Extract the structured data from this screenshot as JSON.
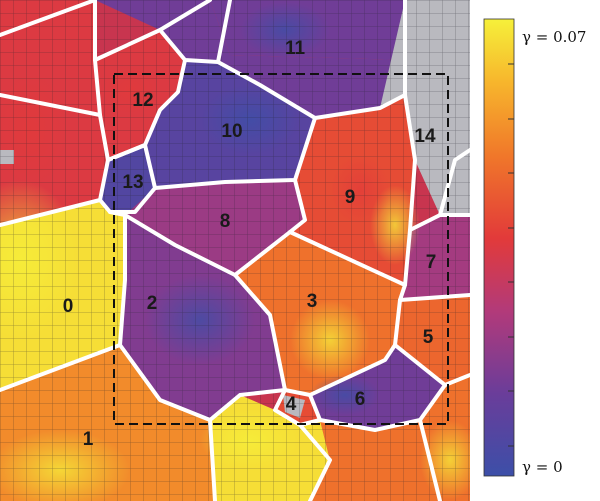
{
  "colorbar": {
    "max_label": "γ = 0.07",
    "min_label": "γ = 0",
    "max_value": 0.07,
    "min_value": 0,
    "colormap": [
      "#3c4fa8",
      "#6a3d9a",
      "#b23a7a",
      "#e23a3a",
      "#f0772a",
      "#f7b52c",
      "#f6f03a"
    ]
  },
  "grains": [
    {
      "id": "grain-0",
      "label": "0",
      "strain_level": 0.95
    },
    {
      "id": "grain-1",
      "label": "1",
      "strain_level": 0.72
    },
    {
      "id": "grain-2",
      "label": "2",
      "strain_level": 0.22
    },
    {
      "id": "grain-3",
      "label": "3",
      "strain_level": 0.65
    },
    {
      "id": "grain-4",
      "label": "4",
      "strain_level": 0.55
    },
    {
      "id": "grain-5",
      "label": "5",
      "strain_level": 0.62
    },
    {
      "id": "grain-6",
      "label": "6",
      "strain_level": 0.18
    },
    {
      "id": "grain-7",
      "label": "7",
      "strain_level": 0.3
    },
    {
      "id": "grain-8",
      "label": "8",
      "strain_level": 0.28
    },
    {
      "id": "grain-9",
      "label": "9",
      "strain_level": 0.55
    },
    {
      "id": "grain-10",
      "label": "10",
      "strain_level": 0.1
    },
    {
      "id": "grain-11",
      "label": "11",
      "strain_level": 0.18
    },
    {
      "id": "grain-12",
      "label": "12",
      "strain_level": 0.48
    },
    {
      "id": "grain-13",
      "label": "13",
      "strain_level": 0.08
    },
    {
      "id": "grain-14",
      "label": "14",
      "strain_level": -1
    }
  ]
}
